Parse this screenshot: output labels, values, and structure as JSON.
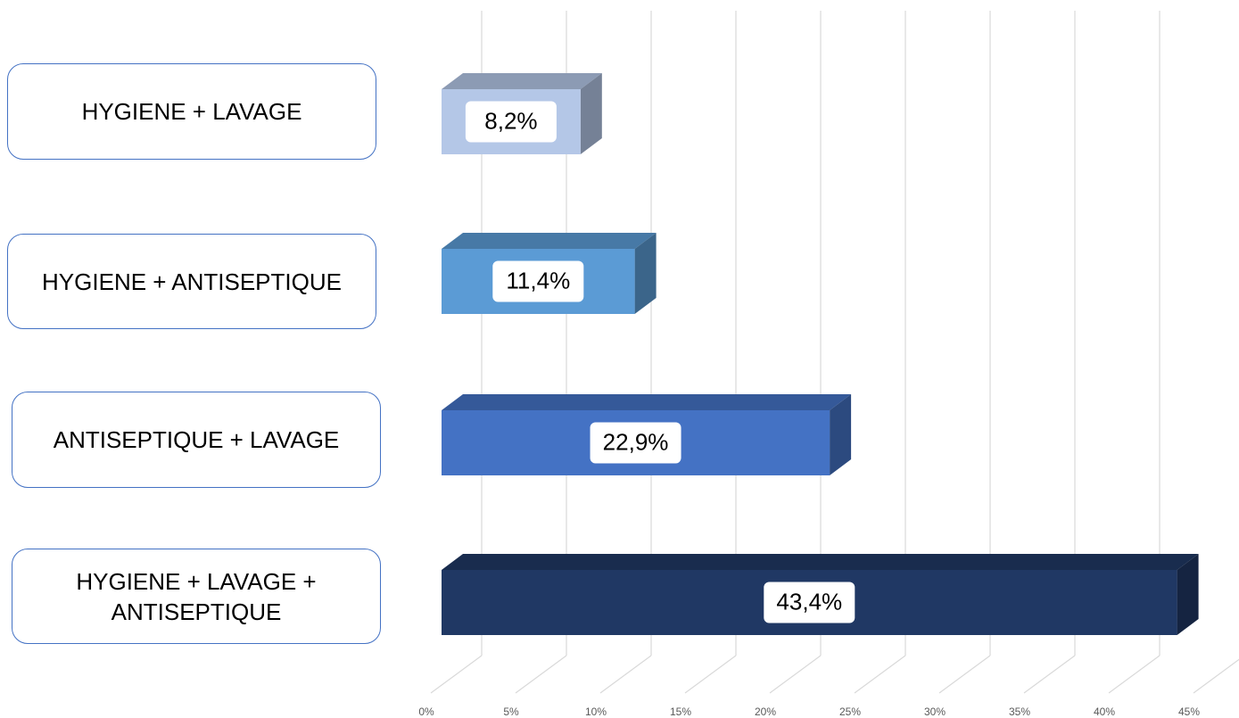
{
  "chart_data": {
    "type": "bar3d",
    "categories": [
      "HYGIENE + LAVAGE",
      "HYGIENE + ANTISEPTIQUE",
      "ANTISEPTIQUE + LAVAGE",
      "HYGIENE + LAVAGE + ANTISEPTIQUE"
    ],
    "values": [
      8.2,
      11.4,
      22.9,
      43.4
    ],
    "value_labels": [
      "8,2%",
      "11,4%",
      "22,9%",
      "43,4%"
    ],
    "colors": [
      "#b4c7e7",
      "#5b9bd5",
      "#4472c4",
      "#203864"
    ],
    "xlim": [
      0,
      45
    ],
    "xticks": [
      {
        "value": 0,
        "label": "0%"
      },
      {
        "value": 5,
        "label": "5%"
      },
      {
        "value": 10,
        "label": "10%"
      },
      {
        "value": 15,
        "label": "15%"
      },
      {
        "value": 20,
        "label": "20%"
      },
      {
        "value": 25,
        "label": "25%"
      },
      {
        "value": 30,
        "label": "30%"
      },
      {
        "value": 35,
        "label": "35%"
      },
      {
        "value": 40,
        "label": "40%"
      },
      {
        "value": 45,
        "label": "45%"
      }
    ],
    "grid": true
  }
}
